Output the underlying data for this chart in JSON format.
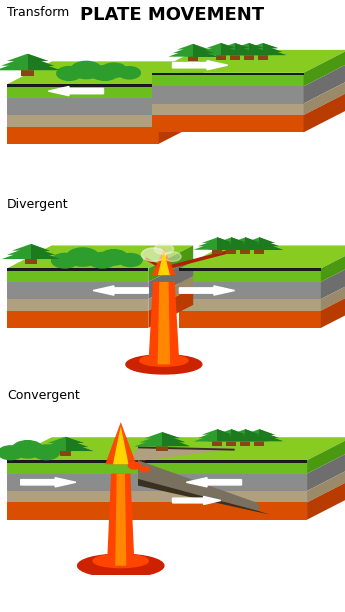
{
  "title": "PLATE MOVEMENT",
  "title_fontsize": 13,
  "title_fontweight": "bold",
  "labels": [
    "Transform",
    "Divergent",
    "Convergent"
  ],
  "label_fontsize": 9,
  "bg_color": "#ffffff",
  "colors": {
    "grass_top": "#6cbd1e",
    "grass_top2": "#88cc22",
    "grass_side": "#4a9910",
    "rock1": "#8c8c8c",
    "rock1_side": "#6e6e6e",
    "rock2": "#b0a080",
    "rock2_side": "#9a8a6a",
    "mantle": "#d94e00",
    "mantle_side": "#b83c00",
    "black_line": "#1a1a1a",
    "tree_trunk": "#8B4513",
    "tree_green": "#2d9e2d",
    "tree_green_dark": "#1e7a1e",
    "lava_dark": "#cc2200",
    "lava_mid": "#ff4400",
    "lava_bright": "#ff8800",
    "lava_yellow": "#ffdd00",
    "fault_dark": "#aa2200",
    "smoke_white": "#f0f0f0",
    "rock_dark": "#555555",
    "slab_gray": "#7a7060",
    "slab_dark": "#3a3020"
  }
}
